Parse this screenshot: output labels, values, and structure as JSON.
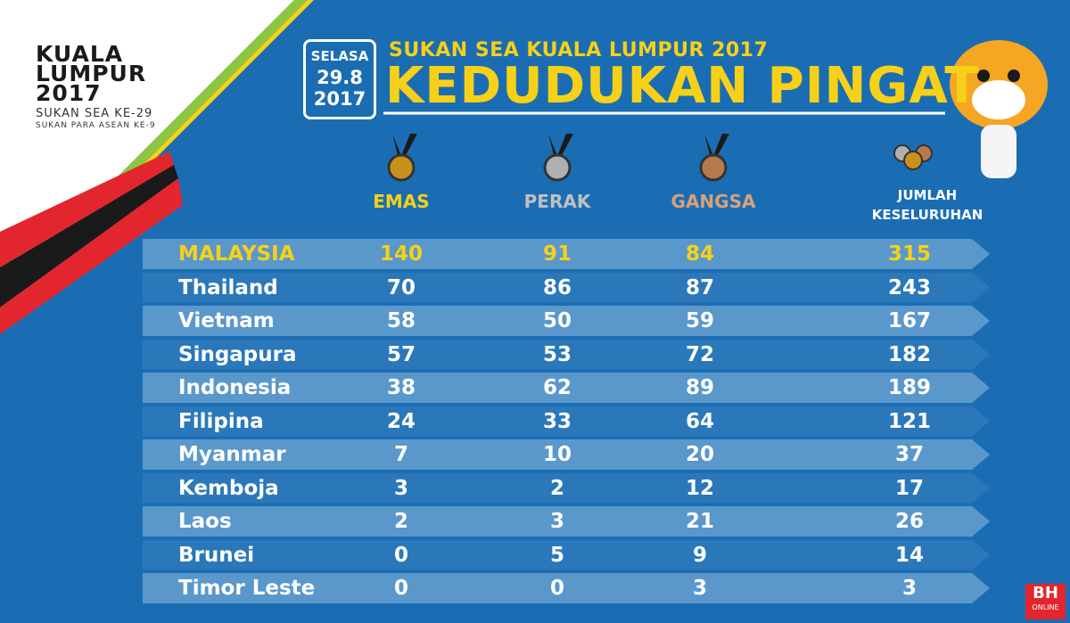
{
  "logo": {
    "line1": "KUALA",
    "line2": "LUMPUR",
    "line3": "2017",
    "sub1": "SUKAN SEA KE-29",
    "sub2": "SUKAN PARA ASEAN KE-9"
  },
  "date": {
    "day": "SELASA",
    "date": "29.8",
    "year": "2017"
  },
  "header": {
    "subtitle": "SUKAN SEA KUALA LUMPUR 2017",
    "title": "KEDUDUKAN PINGAT"
  },
  "columns": [
    "EMAS",
    "PERAK",
    "GANGSA",
    "JUMLAH KESELURUHAN"
  ],
  "table": {
    "rows": [
      {
        "country": "MALAYSIA",
        "gold": 140,
        "silver": 91,
        "bronze": 84,
        "total": 315
      },
      {
        "country": "Thailand",
        "gold": 70,
        "silver": 86,
        "bronze": 87,
        "total": 243
      },
      {
        "country": "Vietnam",
        "gold": 58,
        "silver": 50,
        "bronze": 59,
        "total": 167
      },
      {
        "country": "Singapura",
        "gold": 57,
        "silver": 53,
        "bronze": 72,
        "total": 182
      },
      {
        "country": "Indonesia",
        "gold": 38,
        "silver": 62,
        "bronze": 89,
        "total": 189
      },
      {
        "country": "Filipina",
        "gold": 24,
        "silver": 33,
        "bronze": 64,
        "total": 121
      },
      {
        "country": "Myanmar",
        "gold": 7,
        "silver": 10,
        "bronze": 20,
        "total": 37
      },
      {
        "country": "Kemboja",
        "gold": 3,
        "silver": 2,
        "bronze": 12,
        "total": 17
      },
      {
        "country": "Laos",
        "gold": 2,
        "silver": 3,
        "bronze": 21,
        "total": 26
      },
      {
        "country": "Brunei",
        "gold": 0,
        "silver": 5,
        "bronze": 9,
        "total": 14
      },
      {
        "country": "Timor Leste",
        "gold": 0,
        "silver": 0,
        "bronze": 3,
        "total": 3
      }
    ]
  },
  "brand": {
    "name": "BH",
    "tag": "ONLINE"
  }
}
